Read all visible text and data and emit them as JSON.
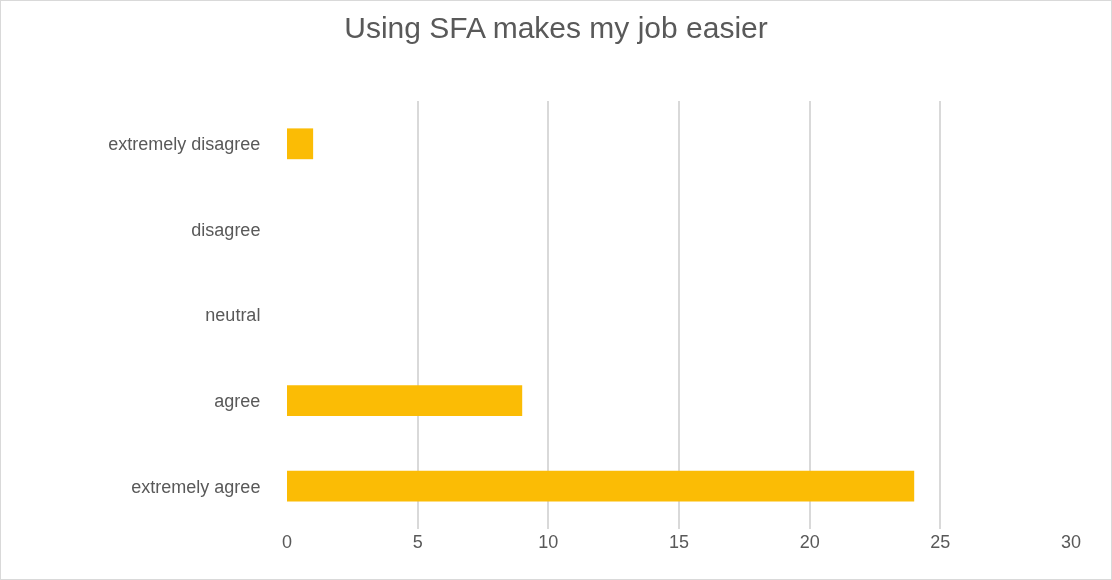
{
  "chart_data": {
    "type": "bar",
    "title": "Using SFA makes my job easier",
    "orientation": "horizontal",
    "categories": [
      "extremely disagree",
      "disagree",
      "neutral",
      "agree",
      "extremely agree"
    ],
    "values": [
      1,
      0,
      0,
      9,
      24
    ],
    "color": "#fbbc05",
    "xlim": [
      0,
      30
    ],
    "xticks": [
      0,
      5,
      10,
      15,
      20,
      25,
      30
    ],
    "grid": "x"
  }
}
